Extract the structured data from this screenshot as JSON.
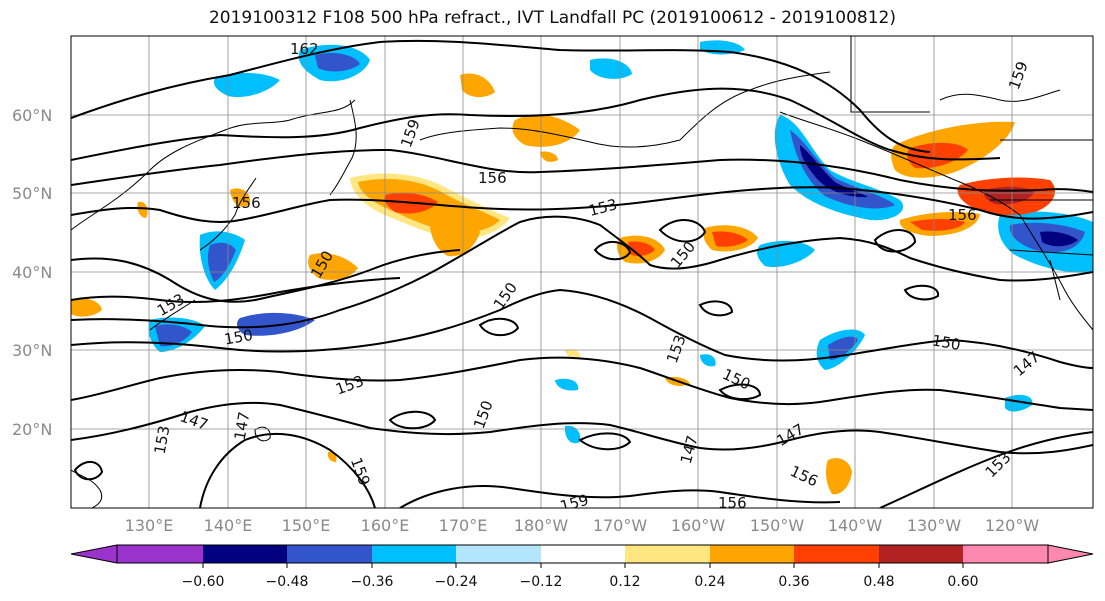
{
  "title": "2019100312 F108 500 hPa refract., IVT Landfall PC (2019100612 - 2019100812)",
  "lat_labels": [
    "60°N",
    "50°N",
    "40°N",
    "30°N",
    "20°N"
  ],
  "lon_labels": [
    "130°E",
    "140°E",
    "150°E",
    "160°E",
    "170°E",
    "180°W",
    "170°W",
    "160°W",
    "150°W",
    "140°W",
    "130°W",
    "120°W"
  ],
  "contour_labels": [
    "162",
    "159",
    "156",
    "156",
    "156",
    "153",
    "153",
    "153",
    "153",
    "153",
    "150",
    "150",
    "150",
    "150",
    "150",
    "150",
    "150",
    "147",
    "147",
    "147",
    "147",
    "147",
    "156",
    "159",
    "159",
    "159",
    "156",
    "153"
  ],
  "colorbar": {
    "ticks": [
      "−0.60",
      "−0.48",
      "−0.36",
      "−0.24",
      "−0.12",
      "0.12",
      "0.24",
      "0.36",
      "0.48",
      "0.60"
    ],
    "colors": [
      "#9933cc",
      "#000080",
      "#3355cc",
      "#00bfff",
      "#b3e5ff",
      "#ffffff",
      "#ffe680",
      "#ffa500",
      "#ff4000",
      "#b22222",
      "#ff88b0",
      "#ff88b0"
    ]
  },
  "colors": {
    "neg_strong": "#000080",
    "neg_mid": "#3355cc",
    "neg_light": "#00bfff",
    "neg_pale": "#b3e5ff",
    "pos_pale": "#ffe680",
    "pos_mid": "#ffa500",
    "pos_strong": "#ff4000",
    "pos_dark": "#b22222"
  }
}
